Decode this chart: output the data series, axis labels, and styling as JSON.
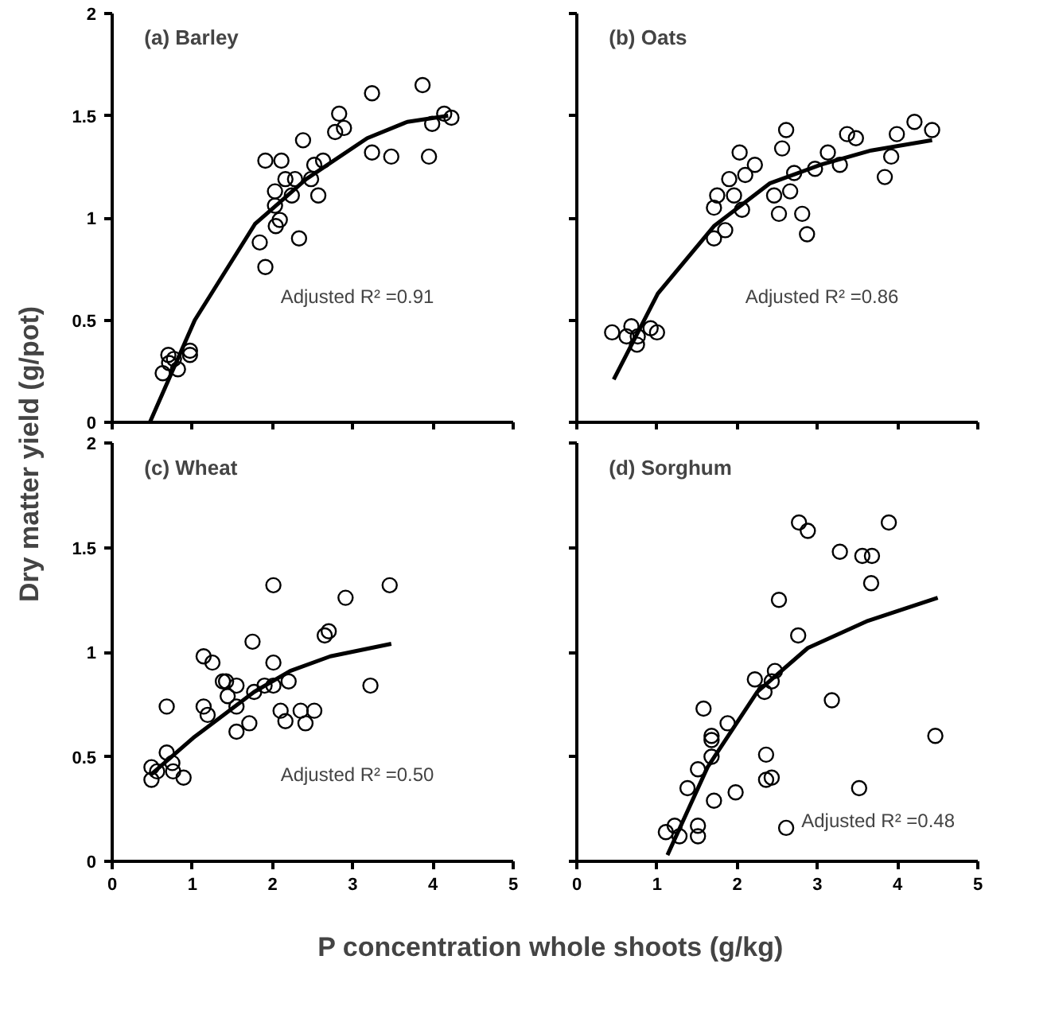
{
  "chart_data": [
    {
      "type": "scatter",
      "title": "(a)  Barley",
      "ylabel": "Dry matter yield (g/pot)",
      "xlim": [
        0,
        5
      ],
      "ylim": [
        0,
        2
      ],
      "xticks": [
        0,
        1,
        2,
        3,
        4,
        5
      ],
      "yticks": [
        0,
        0.5,
        1,
        1.5,
        2
      ],
      "tick_labels": "y",
      "annotations": [
        "Adjusted R² =0.91"
      ],
      "series": [
        {
          "marker": "circle",
          "color": "#000000",
          "x": [
            0.63,
            0.7,
            0.77,
            0.82,
            0.97,
            0.97,
            0.71,
            1.91,
            2.11,
            1.84,
            1.91,
            2.03,
            2.03,
            2.04,
            2.09,
            2.16,
            2.28,
            2.24,
            2.33,
            2.38,
            2.48,
            2.52,
            2.57,
            2.63,
            2.78,
            2.83,
            2.89,
            3.24,
            3.24,
            3.48,
            3.87,
            3.95,
            3.99,
            4.14,
            4.23
          ],
          "values": [
            0.24,
            0.33,
            0.31,
            0.26,
            0.35,
            0.33,
            0.29,
            1.28,
            1.28,
            0.88,
            0.76,
            1.13,
            1.06,
            0.96,
            0.99,
            1.19,
            1.19,
            1.11,
            0.9,
            1.38,
            1.19,
            1.26,
            1.11,
            1.28,
            1.42,
            1.51,
            1.44,
            1.61,
            1.32,
            1.3,
            1.65,
            1.3,
            1.46,
            1.51,
            1.49
          ]
        },
        {
          "type": "line",
          "color": "#000000",
          "x": [
            0.47,
            1.03,
            1.78,
            2.42,
            3.18,
            3.68,
            4.19
          ],
          "values": [
            0,
            0.5,
            0.97,
            1.19,
            1.39,
            1.47,
            1.5
          ]
        }
      ]
    },
    {
      "type": "scatter",
      "title": "(b)  Oats",
      "xlim": [
        0,
        5
      ],
      "ylim": [
        0,
        2
      ],
      "xticks": [
        0,
        1,
        2,
        3,
        4,
        5
      ],
      "yticks": [
        0,
        0.5,
        1,
        1.5,
        2
      ],
      "tick_labels": false,
      "annotations": [
        "Adjusted R² =0.86"
      ],
      "series": [
        {
          "marker": "circle",
          "color": "#000000",
          "x": [
            0.44,
            0.62,
            0.68,
            0.75,
            0.76,
            0.92,
            1.0,
            1.71,
            1.75,
            1.71,
            1.85,
            1.9,
            1.96,
            2.03,
            2.06,
            2.1,
            2.22,
            2.46,
            2.52,
            2.56,
            2.61,
            2.66,
            2.71,
            2.81,
            2.87,
            2.97,
            3.13,
            3.28,
            3.37,
            3.48,
            3.84,
            3.92,
            3.99,
            4.21,
            4.43
          ],
          "values": [
            0.44,
            0.42,
            0.47,
            0.38,
            0.42,
            0.46,
            0.44,
            1.05,
            1.11,
            0.9,
            0.94,
            1.19,
            1.11,
            1.32,
            1.04,
            1.21,
            1.26,
            1.11,
            1.02,
            1.34,
            1.43,
            1.13,
            1.22,
            1.02,
            0.92,
            1.24,
            1.32,
            1.26,
            1.41,
            1.39,
            1.2,
            1.3,
            1.41,
            1.47,
            1.43
          ]
        },
        {
          "type": "line",
          "color": "#000000",
          "x": [
            0.46,
            1.01,
            1.71,
            2.41,
            3.04,
            3.67,
            4.43
          ],
          "values": [
            0.21,
            0.63,
            0.96,
            1.17,
            1.26,
            1.33,
            1.38
          ]
        }
      ]
    },
    {
      "type": "scatter",
      "title": "(c)  Wheat",
      "xlabel": "P concentration whole shoots (g/kg)",
      "xlim": [
        0,
        5
      ],
      "ylim": [
        0,
        2
      ],
      "xticks": [
        0,
        1,
        2,
        3,
        4,
        5
      ],
      "yticks": [
        0,
        0.5,
        1,
        1.5,
        2
      ],
      "annotations": [
        "Adjusted R² =0.50"
      ],
      "series": [
        {
          "marker": "circle",
          "color": "#000000",
          "x": [
            0.49,
            0.49,
            0.56,
            0.68,
            0.68,
            0.75,
            0.76,
            0.89,
            1.14,
            1.14,
            1.19,
            1.25,
            1.38,
            1.42,
            1.44,
            1.55,
            1.55,
            1.55,
            1.71,
            1.75,
            1.77,
            1.9,
            2.01,
            2.01,
            2.01,
            2.1,
            2.16,
            2.2,
            2.35,
            2.41,
            2.52,
            2.65,
            2.7,
            2.91,
            3.22,
            3.46
          ],
          "values": [
            0.39,
            0.45,
            0.43,
            0.74,
            0.52,
            0.47,
            0.43,
            0.4,
            0.98,
            0.74,
            0.7,
            0.95,
            0.86,
            0.86,
            0.79,
            0.84,
            0.74,
            0.62,
            0.66,
            1.05,
            0.81,
            0.84,
            1.32,
            0.95,
            0.84,
            0.72,
            0.67,
            0.86,
            0.72,
            0.66,
            0.72,
            1.08,
            1.1,
            1.26,
            0.84,
            1.32
          ]
        },
        {
          "type": "line",
          "color": "#000000",
          "x": [
            0.47,
            1.01,
            1.77,
            2.22,
            2.72,
            3.48
          ],
          "values": [
            0.41,
            0.59,
            0.81,
            0.91,
            0.98,
            1.04
          ]
        }
      ]
    },
    {
      "type": "scatter",
      "title": "(d)  Sorghum",
      "xlim": [
        0,
        5
      ],
      "ylim": [
        0,
        2
      ],
      "xticks": [
        0,
        1,
        2,
        3,
        4,
        5
      ],
      "yticks": [
        0,
        0.5,
        1,
        1.5,
        2
      ],
      "tick_labels": "x",
      "annotations": [
        "Adjusted R² =0.48"
      ],
      "series": [
        {
          "marker": "circle",
          "color": "#000000",
          "x": [
            1.11,
            1.22,
            1.28,
            1.51,
            1.51,
            1.38,
            1.51,
            1.58,
            1.68,
            1.68,
            1.68,
            1.71,
            1.88,
            1.98,
            2.22,
            2.34,
            2.36,
            2.36,
            2.43,
            2.43,
            2.47,
            2.52,
            2.61,
            2.76,
            2.77,
            2.88,
            3.18,
            3.28,
            3.52,
            3.56,
            3.68,
            3.67,
            3.89,
            4.47
          ],
          "values": [
            0.14,
            0.17,
            0.12,
            0.17,
            0.12,
            0.35,
            0.44,
            0.73,
            0.6,
            0.58,
            0.5,
            0.29,
            0.66,
            0.33,
            0.87,
            0.81,
            0.51,
            0.39,
            0.4,
            0.86,
            0.91,
            1.25,
            0.16,
            1.08,
            1.62,
            1.58,
            0.77,
            1.48,
            0.35,
            1.46,
            1.46,
            1.33,
            1.62,
            0.6
          ]
        },
        {
          "type": "line",
          "color": "#000000",
          "x": [
            1.13,
            1.63,
            2.25,
            2.88,
            3.63,
            4.5
          ],
          "values": [
            0.03,
            0.45,
            0.81,
            1.02,
            1.15,
            1.26
          ]
        }
      ]
    }
  ]
}
